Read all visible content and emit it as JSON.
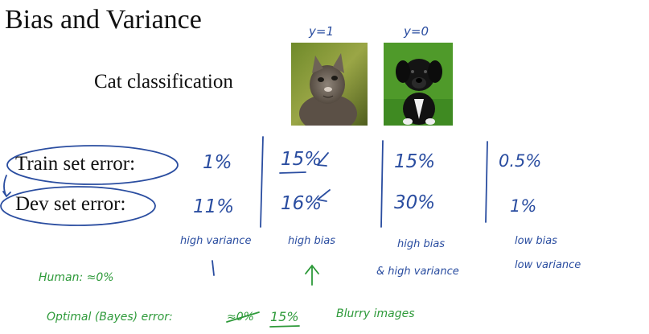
{
  "title": "Bias and Variance",
  "subtitle": "Cat classification",
  "image_labels": {
    "cat": "y=1",
    "dog": "y=0"
  },
  "rows": {
    "train": "Train set error:",
    "dev": "Dev set error:"
  },
  "columns": [
    {
      "train": "1%",
      "dev": "11%",
      "verdict": "high variance"
    },
    {
      "train": "15%",
      "dev": "16%",
      "verdict": "high bias"
    },
    {
      "train": "15%",
      "dev": "30%",
      "verdict": "high bias",
      "verdict2": "& high variance"
    },
    {
      "train": "0.5%",
      "dev": "1%",
      "verdict": "low bias",
      "verdict2": "low variance"
    }
  ],
  "notes": {
    "human": "Human: ≈0%",
    "optimal_prefix": "Optimal (Bayes) error:",
    "optimal_struck": "≈0%",
    "optimal_value": "15%",
    "blurry": "Blurry images"
  },
  "colors": {
    "ink_blue": "#2a4da0",
    "ink_green": "#2e9a3a"
  }
}
